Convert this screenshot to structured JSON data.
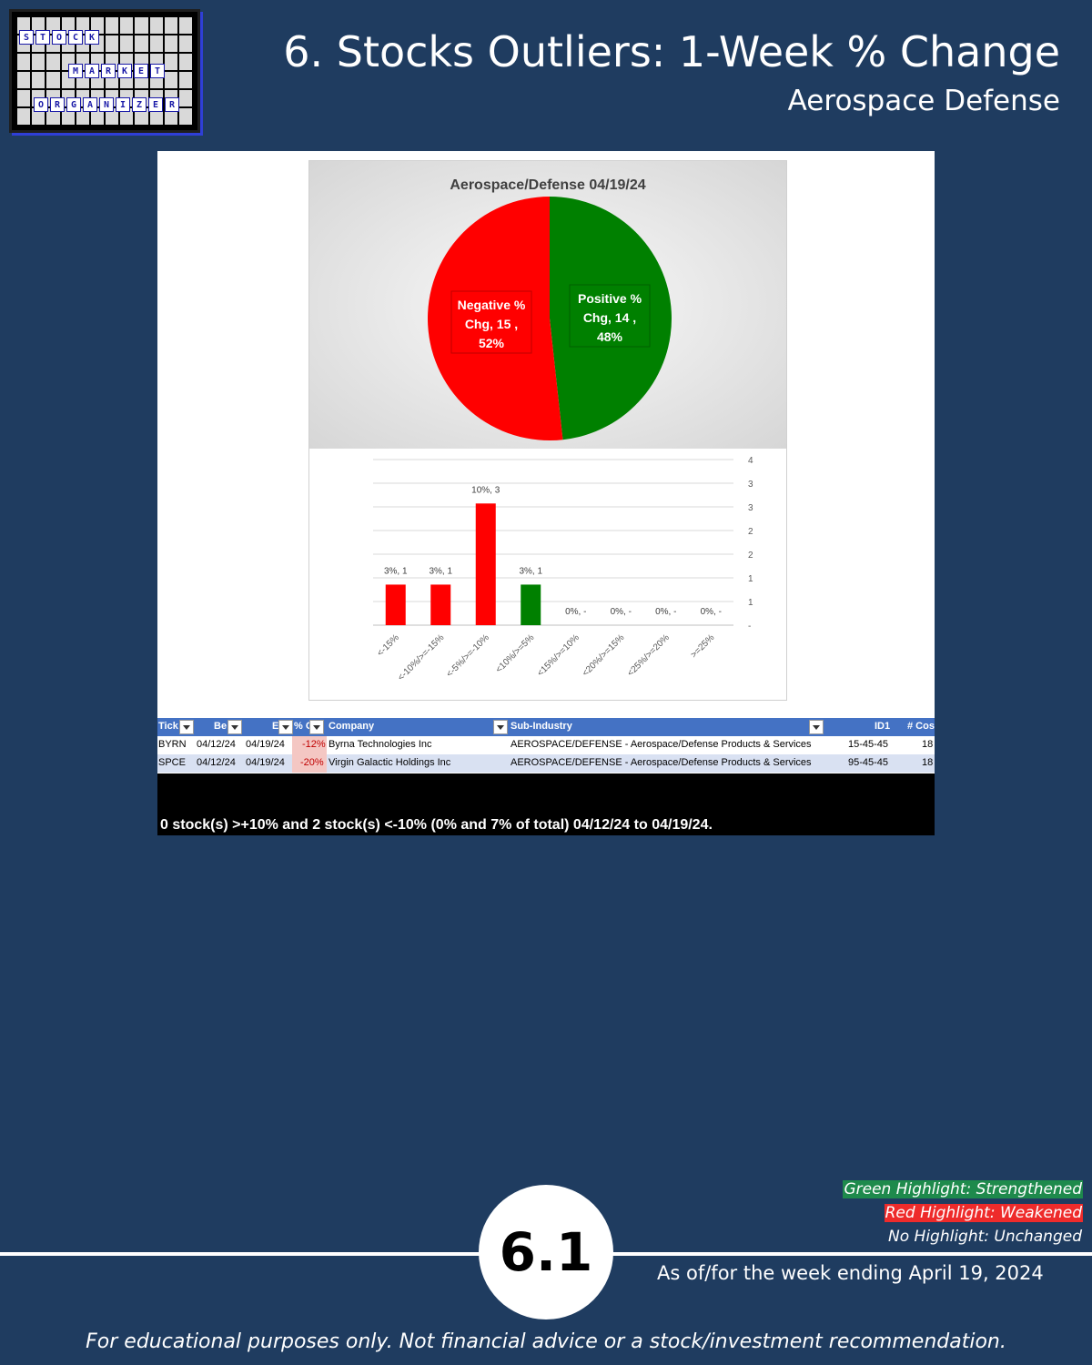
{
  "logo": {
    "row1": [
      "S",
      "T",
      "O",
      "C",
      "K"
    ],
    "row2": [
      "M",
      "A",
      "R",
      "K",
      "E",
      "T"
    ],
    "row3": [
      "O",
      "R",
      "G",
      "A",
      "N",
      "I",
      "Z",
      "E",
      "R"
    ]
  },
  "header": {
    "title": "6. Stocks Outliers: 1-Week % Change",
    "subtitle": "Aerospace Defense"
  },
  "colors": {
    "background": "#1f3c60",
    "positive": "#008000",
    "negative": "#ff0000",
    "table_header": "#4472c4"
  },
  "chart_data": [
    {
      "type": "pie",
      "title": "Aerospace/Defense 04/19/24",
      "slices": [
        {
          "label_lines": [
            "Positive %",
            "Chg,  14 ,",
            "48%"
          ],
          "count": 14,
          "percent": 48,
          "color": "#008000"
        },
        {
          "label_lines": [
            "Negative %",
            "Chg,  15 ,",
            "52%"
          ],
          "count": 15,
          "percent": 52,
          "color": "#ff0000"
        }
      ]
    },
    {
      "type": "bar",
      "categories": [
        "<-15%",
        "<-10%/>=-15%",
        "<-5%/>=-10%",
        "<10%/>=5%",
        "<15%/>=10%",
        "<20%/>=15%",
        "<25%/>=20%",
        ">=25%"
      ],
      "values": [
        1,
        1,
        3,
        1,
        0,
        0,
        0,
        0
      ],
      "data_labels": [
        "3%,  1",
        "3%,  1",
        "10%,  3",
        "3%,  1",
        "0%,  -",
        "0%,  -",
        "0%,  -",
        "0%,  -"
      ],
      "colors": [
        "#ff0000",
        "#ff0000",
        "#ff0000",
        "#008000",
        "#008000",
        "#008000",
        "#008000",
        "#008000"
      ],
      "y_ticks": [
        "-",
        "1",
        "1",
        "2",
        "2",
        "3",
        "3",
        "4"
      ],
      "ylim": [
        0,
        3.5
      ],
      "y_axis_side": "right",
      "grid": true
    }
  ],
  "table": {
    "headers": [
      "Tick",
      "Be",
      "E",
      "% C",
      "Company",
      "Sub-Industry",
      "ID1",
      "# Cos"
    ],
    "rows": [
      {
        "ticker": "BYRN",
        "begin": "04/12/24",
        "end": "04/19/24",
        "pct": "-12%",
        "company": "Byrna Technologies Inc",
        "sub": "AEROSPACE/DEFENSE - Aerospace/Defense Products & Services",
        "id1": "15-45-45",
        "cos": "18"
      },
      {
        "ticker": "SPCE",
        "begin": "04/12/24",
        "end": "04/19/24",
        "pct": "-20%",
        "company": "Virgin Galactic Holdings Inc",
        "sub": "AEROSPACE/DEFENSE - Aerospace/Defense Products & Services",
        "id1": "95-45-45",
        "cos": "18"
      }
    ],
    "summary": "0 stock(s) >+10% and 2 stock(s) <-10% (0% and 7% of total) 04/12/24 to 04/19/24."
  },
  "legend": {
    "green": "Green Highlight: Strengthened",
    "red": "Red Highlight: Weakened",
    "none": "No Highlight: Unchanged"
  },
  "footer": {
    "badge": "6.1",
    "as_of": "As of/for the week ending April 19, 2024",
    "disclaimer": "For educational purposes only. Not financial advice or a stock/investment recommendation."
  }
}
